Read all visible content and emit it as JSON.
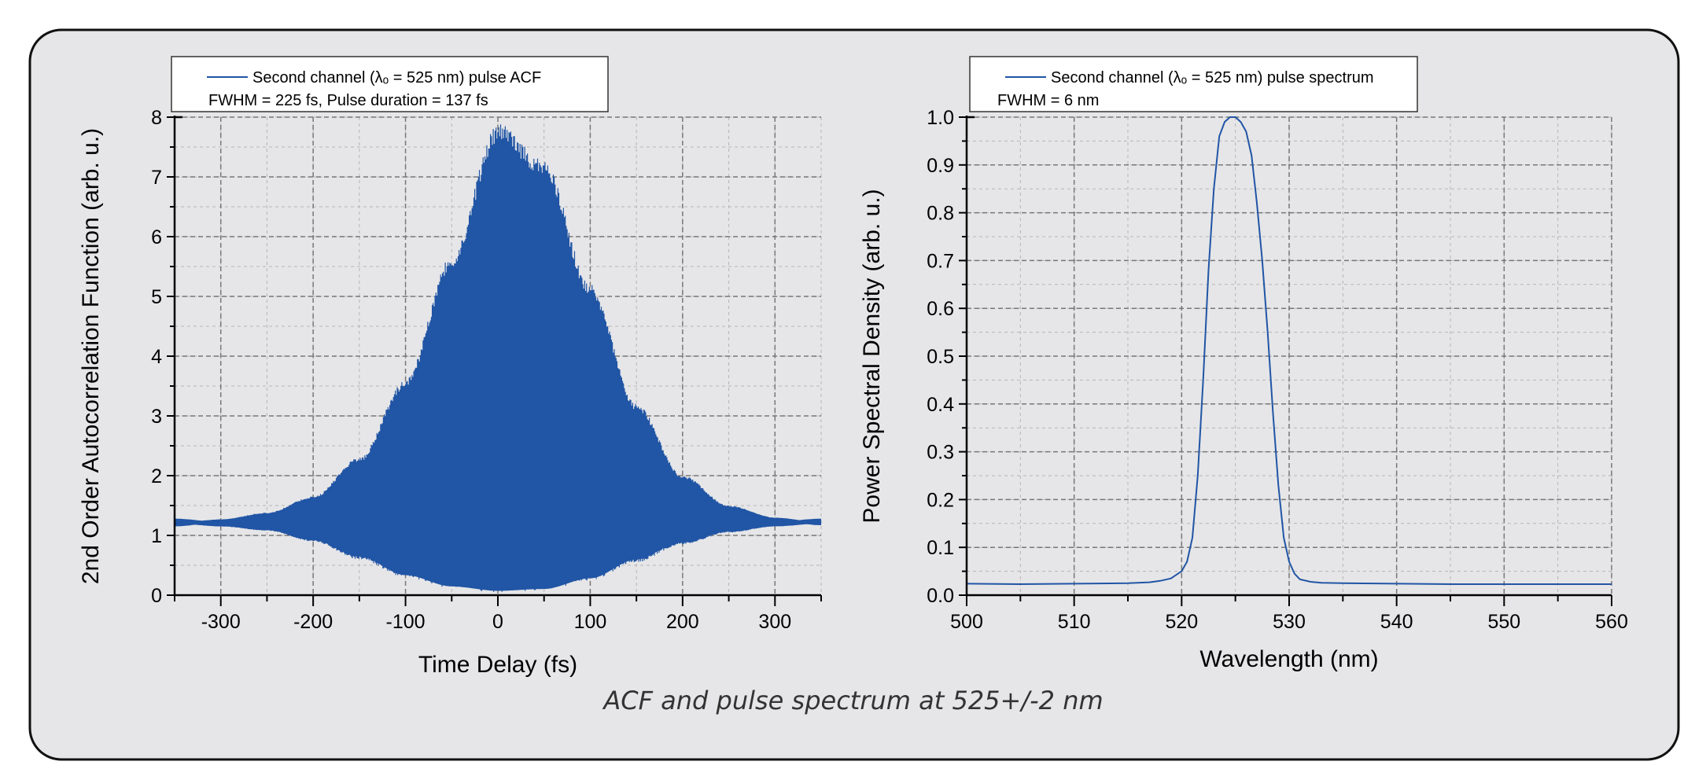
{
  "caption": "ACF and pulse spectrum at 525+/-2 nm",
  "colors": {
    "series": "#2155a5",
    "panel": "#e6e6e8",
    "grid": "#888888"
  },
  "chart_data": [
    {
      "type": "area",
      "title": "",
      "xlabel": "Time Delay (fs)",
      "ylabel": "2nd Order Autocorrelation Function (arb. u.)",
      "xlim": [
        -350,
        350
      ],
      "ylim": [
        0,
        8
      ],
      "xticks": [
        -300,
        -200,
        -100,
        0,
        100,
        200,
        300
      ],
      "yticks": [
        0,
        1,
        2,
        3,
        4,
        5,
        6,
        7,
        8
      ],
      "grid": true,
      "legend": {
        "placement": "top-left",
        "entries": [
          "Second channel (λₒ = 525 nm) pulse ACF"
        ],
        "note": "FWHM = 225 fs, Pulse duration = 137 fs"
      },
      "series": [
        {
          "name": "Second channel (λₒ = 525 nm) pulse ACF",
          "x": [
            -350,
            -300,
            -250,
            -200,
            -150,
            -100,
            -50,
            0,
            50,
            100,
            150,
            200,
            250,
            300,
            350
          ],
          "upper": [
            1.2,
            1.27,
            1.38,
            1.65,
            2.3,
            3.6,
            5.7,
            7.9,
            7.3,
            5.2,
            3.2,
            2.0,
            1.5,
            1.3,
            1.22
          ],
          "lower": [
            1.2,
            1.15,
            1.08,
            0.9,
            0.6,
            0.3,
            0.12,
            0.05,
            0.08,
            0.25,
            0.55,
            0.85,
            1.05,
            1.15,
            1.2
          ]
        }
      ]
    },
    {
      "type": "line",
      "title": "",
      "xlabel": "Wavelength (nm)",
      "ylabel": "Power Spectral Density (arb. u.)",
      "xlim": [
        500,
        560
      ],
      "ylim": [
        0,
        1.0
      ],
      "xticks": [
        500,
        510,
        520,
        530,
        540,
        550,
        560
      ],
      "yticks": [
        "0.0",
        "0.1",
        "0.2",
        "0.3",
        "0.4",
        "0.5",
        "0.6",
        "0.7",
        "0.8",
        "0.9",
        "1.0"
      ],
      "grid": true,
      "legend": {
        "placement": "top-left",
        "entries": [
          "Second channel (λₒ = 525 nm) pulse spectrum"
        ],
        "note": "FWHM = 6 nm"
      },
      "series": [
        {
          "name": "Second channel (λₒ = 525 nm) pulse spectrum",
          "x": [
            500,
            505,
            510,
            515,
            517,
            518,
            519,
            520,
            520.5,
            521,
            521.5,
            522,
            522.5,
            523,
            523.5,
            524,
            524.5,
            525,
            525.5,
            526,
            526.5,
            527,
            527.5,
            528,
            528.5,
            529,
            529.5,
            530,
            530.5,
            531,
            532,
            533,
            535,
            540,
            545,
            550,
            555,
            560
          ],
          "y": [
            0.024,
            0.023,
            0.024,
            0.025,
            0.027,
            0.03,
            0.035,
            0.05,
            0.07,
            0.12,
            0.25,
            0.45,
            0.68,
            0.85,
            0.96,
            0.99,
            1.0,
            1.0,
            0.99,
            0.97,
            0.92,
            0.82,
            0.7,
            0.55,
            0.38,
            0.23,
            0.12,
            0.07,
            0.045,
            0.033,
            0.028,
            0.026,
            0.025,
            0.024,
            0.023,
            0.023,
            0.023,
            0.023
          ]
        }
      ]
    }
  ]
}
